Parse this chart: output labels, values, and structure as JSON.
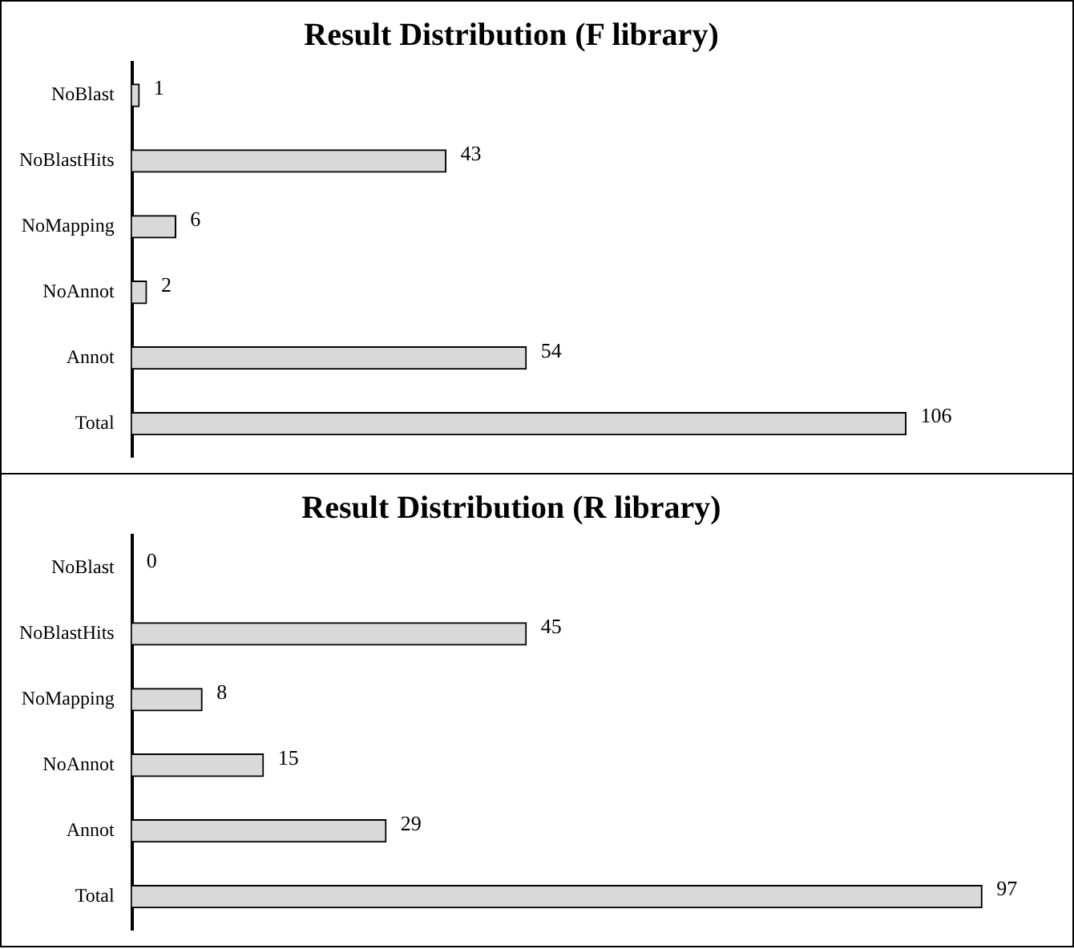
{
  "chart_data": [
    {
      "type": "bar",
      "orientation": "horizontal",
      "title": "Result Distribution (F library)",
      "categories": [
        "NoBlast",
        "NoBlastHits",
        "NoMapping",
        "NoAnnot",
        "Annot",
        "Total"
      ],
      "values": [
        1,
        43,
        6,
        2,
        54,
        106
      ],
      "color": "#d9d9d9",
      "data_labels": true,
      "legend": false
    },
    {
      "type": "bar",
      "orientation": "horizontal",
      "title": "Result Distribution (R library)",
      "categories": [
        "NoBlast",
        "NoBlastHits",
        "NoMapping",
        "NoAnnot",
        "Annot",
        "Total"
      ],
      "values": [
        0,
        45,
        8,
        15,
        29,
        97
      ],
      "color": "#d9d9d9",
      "data_labels": true,
      "legend": false
    }
  ]
}
